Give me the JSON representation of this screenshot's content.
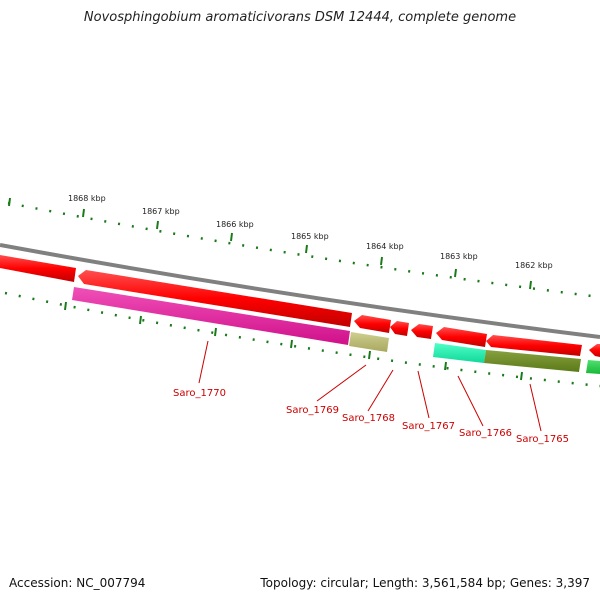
{
  "title": "Novosphingobium aromaticivorans DSM 12444, complete genome",
  "footer": {
    "accession": "Accession: NC_007794",
    "summary": "Topology: circular; Length: 3,561,584 bp; Genes: 3,397"
  },
  "scale_labels": [
    "1868 kbp",
    "1867 kbp",
    "1866 kbp",
    "1865 kbp",
    "1864 kbp",
    "1863 kbp",
    "1862 kbp"
  ],
  "gene_labels": [
    "Saro_1770",
    "Saro_1769",
    "Saro_1768",
    "Saro_1767",
    "Saro_1766",
    "Saro_1765"
  ],
  "colors": {
    "backbone": "#808080",
    "gene_track": "#ff0000",
    "tick": "#1a7a1a",
    "label": "#cc0000",
    "feature_magenta": "#e0189a",
    "feature_khaki": "#b8b870",
    "feature_aqua": "#20f0b0",
    "feature_olive": "#6b8a1e",
    "feature_green": "#22cc44"
  }
}
